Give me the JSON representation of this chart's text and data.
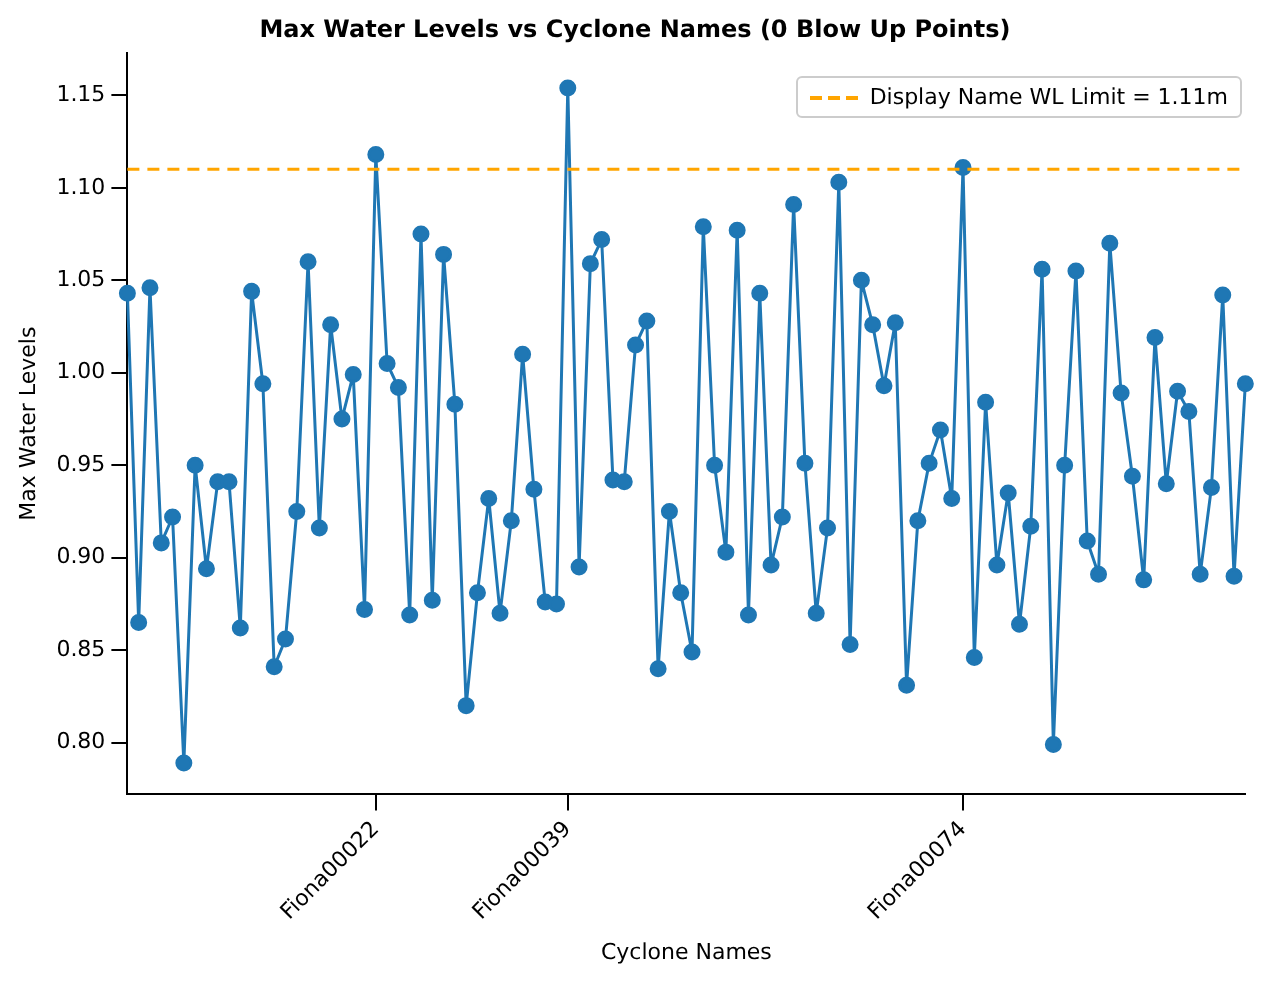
{
  "chart_data": {
    "type": "line",
    "title": "Max Water Levels vs Cyclone Names (0 Blow Up Points)",
    "xlabel": "Cyclone Names",
    "ylabel": "Max Water Levels",
    "categories": [
      null,
      null,
      null,
      null,
      null,
      null,
      null,
      null,
      null,
      null,
      null,
      null,
      null,
      null,
      null,
      null,
      null,
      null,
      null,
      null,
      null,
      null,
      "Fiona00022",
      null,
      null,
      null,
      null,
      null,
      null,
      null,
      null,
      null,
      null,
      null,
      null,
      null,
      null,
      null,
      null,
      "Fiona00039",
      null,
      null,
      null,
      null,
      null,
      null,
      null,
      null,
      null,
      null,
      null,
      null,
      null,
      null,
      null,
      null,
      null,
      null,
      null,
      null,
      null,
      null,
      null,
      null,
      null,
      null,
      null,
      null,
      null,
      null,
      null,
      null,
      null,
      null,
      "Fiona00074",
      null,
      null,
      null,
      null,
      null,
      null,
      null,
      null,
      null,
      null,
      null,
      null,
      null,
      null,
      null,
      null,
      null,
      null,
      null,
      null,
      null,
      null,
      null,
      null,
      null
    ],
    "series": [
      {
        "color": "#1f77b4",
        "values": [
          1.043,
          0.865,
          1.046,
          0.908,
          0.922,
          0.789,
          0.95,
          0.894,
          0.941,
          0.941,
          0.862,
          1.044,
          0.994,
          0.841,
          0.856,
          0.925,
          1.06,
          0.916,
          1.026,
          0.975,
          0.999,
          0.872,
          1.118,
          1.005,
          0.992,
          0.869,
          1.075,
          0.877,
          1.064,
          0.983,
          0.82,
          0.881,
          0.932,
          0.87,
          0.92,
          1.01,
          0.937,
          0.876,
          0.875,
          1.154,
          0.895,
          1.059,
          1.072,
          0.942,
          0.941,
          1.015,
          1.028,
          0.84,
          0.925,
          0.881,
          0.849,
          1.079,
          0.95,
          0.903,
          1.077,
          0.869,
          1.043,
          0.896,
          0.922,
          1.091,
          0.951,
          0.87,
          0.916,
          1.103,
          0.853,
          1.05,
          1.026,
          0.993,
          1.027,
          0.831,
          0.92,
          0.951,
          0.969,
          0.932,
          1.111,
          0.846,
          0.984,
          0.896,
          0.935,
          0.864,
          0.917,
          1.056,
          0.799,
          0.95,
          1.055,
          0.909,
          0.891,
          1.07,
          0.989,
          0.944,
          0.888,
          1.019,
          0.94,
          0.99,
          0.979,
          0.891,
          0.938,
          1.042,
          0.89,
          0.994
        ]
      }
    ],
    "ylim": [
      0.772,
      1.173
    ],
    "yticks": [
      {
        "value": 0.8,
        "label": "0.80"
      },
      {
        "value": 0.85,
        "label": "0.85"
      },
      {
        "value": 0.9,
        "label": "0.90"
      },
      {
        "value": 0.95,
        "label": "0.95"
      },
      {
        "value": 1.0,
        "label": "1.00"
      },
      {
        "value": 1.05,
        "label": "1.05"
      },
      {
        "value": 1.1,
        "label": "1.10"
      },
      {
        "value": 1.15,
        "label": "1.15"
      }
    ],
    "ref_lines": [
      {
        "axis": "y",
        "value": 1.11,
        "label": "Display Name WL Limit = 1.11m",
        "color": "#ffa500",
        "line_style": "dashed"
      }
    ],
    "legend": "top right",
    "marker": "circle",
    "line_style": "solid",
    "grid": false
  }
}
